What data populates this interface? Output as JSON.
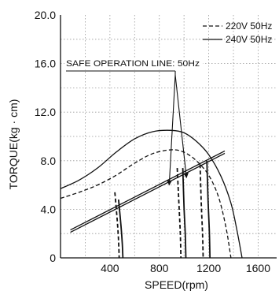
{
  "chart_data": {
    "type": "line",
    "title": "",
    "xlabel": "SPEED(rpm)",
    "ylabel": "TORQUE(kg · cm)",
    "xlim": [
      0,
      1750
    ],
    "ylim": [
      0,
      20
    ],
    "xticks": [
      400,
      800,
      1200,
      1600
    ],
    "xtick_labels": [
      "400",
      "800",
      "1200",
      "1600"
    ],
    "yticks": [
      0,
      4,
      8,
      12,
      16,
      20
    ],
    "ytick_labels": [
      "0",
      "4.0",
      "8.0",
      "12.0",
      "16.0",
      "20.0"
    ],
    "grid": true,
    "grid_style": "dotted",
    "legend_position": "top-right",
    "series": [
      {
        "name": "220V 50Hz",
        "style": "dashed",
        "x": [
          0,
          150,
          300,
          450,
          600,
          750,
          900,
          1000,
          1100,
          1200,
          1280,
          1340,
          1380
        ],
        "y": [
          4.9,
          5.4,
          6.0,
          6.8,
          7.8,
          8.6,
          8.9,
          8.7,
          8.0,
          6.8,
          5.0,
          2.5,
          0
        ]
      },
      {
        "name": "240V 50Hz",
        "style": "solid",
        "x": [
          0,
          150,
          300,
          450,
          600,
          750,
          900,
          1000,
          1100,
          1200,
          1300,
          1380,
          1430,
          1470
        ],
        "y": [
          5.7,
          6.4,
          7.4,
          8.7,
          9.8,
          10.4,
          10.5,
          10.3,
          9.6,
          8.5,
          6.7,
          4.5,
          2.2,
          0
        ]
      }
    ],
    "safe_operation_line": {
      "label": "SAFE OPERATION  LINE: 50Hz",
      "x": [
        80,
        1330
      ],
      "y": [
        2.3,
        8.8
      ]
    },
    "load_curves": [
      {
        "style": "dashed",
        "x": [
          440,
          460,
          470,
          475
        ],
        "y": [
          5.4,
          3.0,
          1.4,
          0
        ]
      },
      {
        "style": "solid",
        "x": [
          470,
          490,
          500,
          505
        ],
        "y": [
          4.8,
          2.6,
          1.2,
          0
        ]
      },
      {
        "style": "dashed",
        "x": [
          945,
          960,
          970,
          975
        ],
        "y": [
          7.4,
          4.2,
          2.0,
          0
        ]
      },
      {
        "style": "solid",
        "x": [
          990,
          1000,
          1010,
          1015
        ],
        "y": [
          7.4,
          4.2,
          2.0,
          0
        ]
      },
      {
        "style": "dashed",
        "x": [
          1130,
          1140,
          1150,
          1155
        ],
        "y": [
          7.7,
          4.4,
          2.0,
          0
        ]
      },
      {
        "style": "solid",
        "x": [
          1185,
          1195,
          1205,
          1210
        ],
        "y": [
          8.0,
          4.6,
          2.2,
          0
        ]
      }
    ],
    "arrows": [
      {
        "to_x": 880,
        "to_y": 6.0
      },
      {
        "to_x": 1020,
        "to_y": 6.6
      }
    ]
  }
}
